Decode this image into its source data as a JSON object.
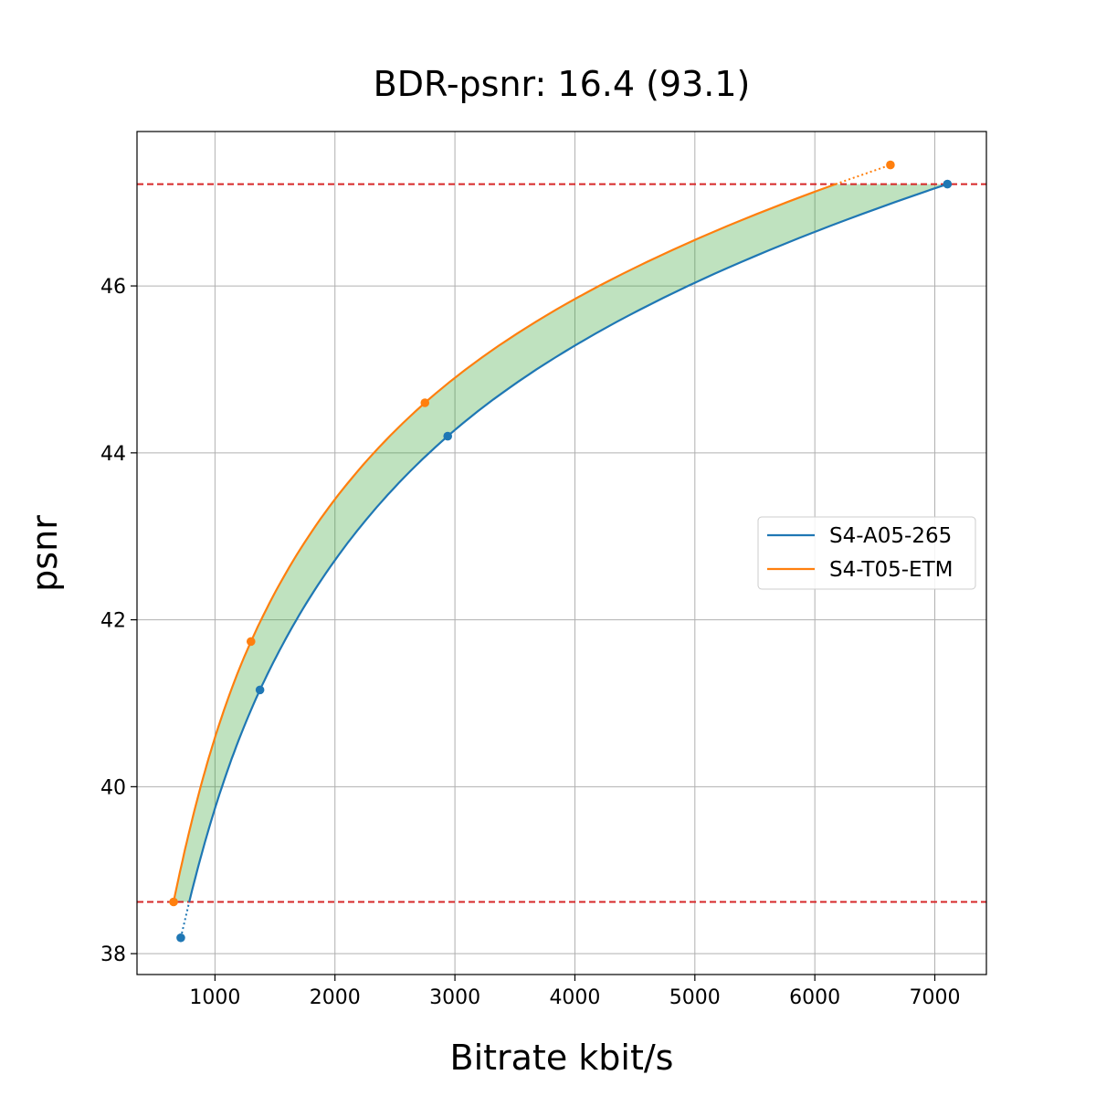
{
  "chart_data": {
    "type": "line",
    "title": "BDR-psnr: 16.4 (93.1)",
    "xlabel": "Bitrate kbit/s",
    "ylabel": "psnr",
    "xlim": [
      350,
      7430
    ],
    "ylim": [
      37.75,
      47.85
    ],
    "x_ticks": [
      1000,
      2000,
      3000,
      4000,
      5000,
      6000,
      7000
    ],
    "y_ticks": [
      38,
      40,
      42,
      44,
      46
    ],
    "grid": true,
    "legend_position": "center-right",
    "overlap_lines": {
      "y": [
        38.62,
        47.22
      ],
      "color": "#d62728",
      "style": "dashed"
    },
    "fill_color": "#2ca02c",
    "series": [
      {
        "name": "S4-A05-265",
        "color": "#1f77b4",
        "points": [
          {
            "x": 715,
            "y": 38.19
          },
          {
            "x": 1375,
            "y": 41.16
          },
          {
            "x": 2940,
            "y": 44.2
          },
          {
            "x": 7105,
            "y": 47.22
          }
        ]
      },
      {
        "name": "S4-T05-ETM",
        "color": "#ff7f0e",
        "points": [
          {
            "x": 655,
            "y": 38.62
          },
          {
            "x": 1300,
            "y": 41.74
          },
          {
            "x": 2750,
            "y": 44.6
          },
          {
            "x": 6630,
            "y": 47.45
          }
        ]
      }
    ]
  }
}
